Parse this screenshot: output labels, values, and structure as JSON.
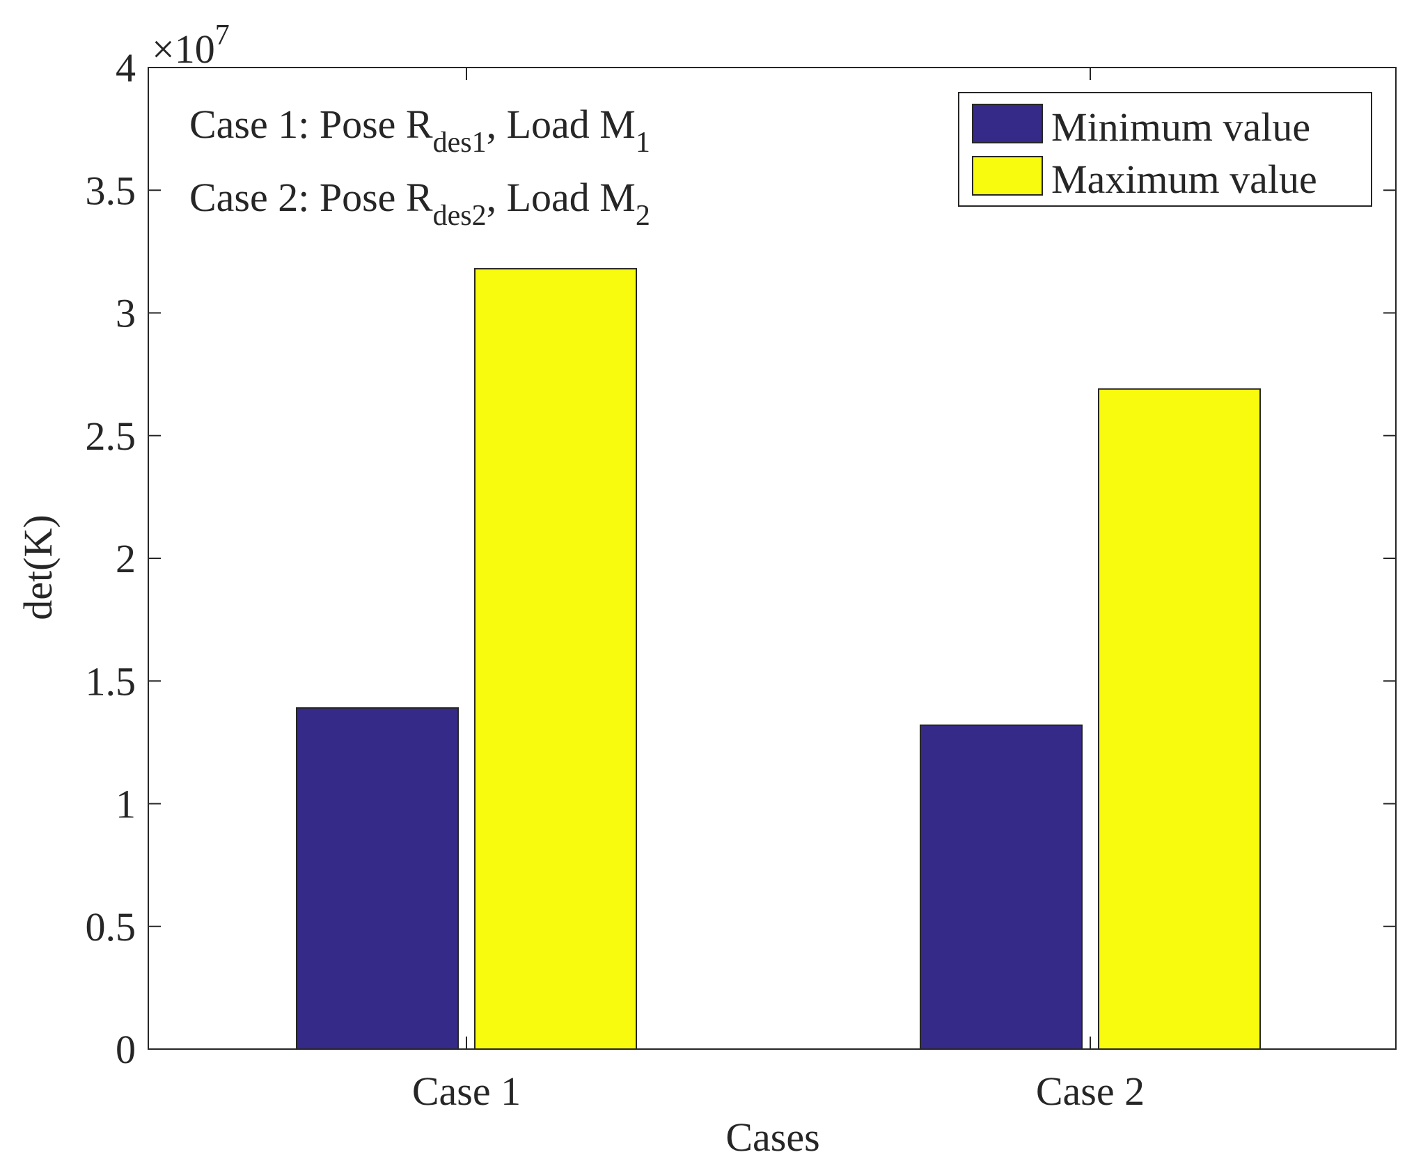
{
  "chart_data": {
    "type": "bar",
    "title": "",
    "xlabel": "Cases",
    "ylabel": "det(K)",
    "y_exponent_label": "×10",
    "y_exponent_power": "7",
    "ylim": [
      0,
      4
    ],
    "yticks": [
      0,
      0.5,
      1,
      1.5,
      2,
      2.5,
      3,
      3.5,
      4
    ],
    "ytick_labels": [
      "0",
      "0.5",
      "1",
      "1.5",
      "2",
      "2.5",
      "3",
      "3.5",
      "4"
    ],
    "categories": [
      "Case 1",
      "Case 2"
    ],
    "series": [
      {
        "name": "Minimum value",
        "color": "#352A87",
        "values": [
          1.39,
          1.32
        ]
      },
      {
        "name": "Maximum value",
        "color": "#F9FB0E",
        "values": [
          3.18,
          2.69
        ]
      }
    ],
    "legend_position": "top-right",
    "annotations": [
      {
        "prefix": "Case 1: Pose R",
        "sub1": "des1",
        "mid": ", Load M",
        "sub2": "1"
      },
      {
        "prefix": "Case 2: Pose R",
        "sub1": "des2",
        "mid": ", Load M",
        "sub2": "2"
      }
    ]
  }
}
